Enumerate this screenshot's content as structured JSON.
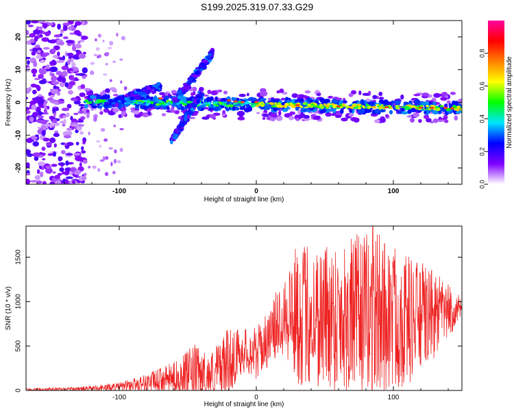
{
  "title": "S199.2025.319.07.33.G29",
  "chart_data": [
    {
      "type": "heatmap",
      "name": "spectrogram",
      "title": "S199.2025.319.07.33.G29",
      "xlabel": "Height of straight line (km)",
      "ylabel": "Frequency (Hz)",
      "xlim": [
        -168,
        150
      ],
      "ylim": [
        -25,
        25
      ],
      "xticks": [
        -100,
        0,
        100
      ],
      "yticks": [
        -20,
        -10,
        0,
        10,
        20
      ],
      "colorbar": {
        "label": "Normalized spectral amplitude",
        "range": [
          0,
          1
        ],
        "ticks": [
          0.0,
          0.2,
          0.4,
          0.6,
          0.8
        ],
        "colormap": [
          "#ffffff",
          "#8000ff",
          "#0000ff",
          "#00e5ff",
          "#00ff00",
          "#ffff00",
          "#ff8000",
          "#ff0000",
          "#ff00a0"
        ]
      },
      "features": [
        {
          "name": "noise-band",
          "x_range": [
            -168,
            -125
          ],
          "y_range": [
            -25,
            25
          ],
          "amplitude": 0.15
        },
        {
          "name": "main-trace",
          "x_range": [
            -125,
            150
          ],
          "y_start": 0.3,
          "y_end": -1.8,
          "amplitude_range": [
            0.3,
            0.9
          ]
        },
        {
          "name": "rising-branch-1",
          "x_range": [
            -60,
            -32
          ],
          "y_start": 0,
          "y_end": 15
        },
        {
          "name": "rising-branch-2",
          "x_range": [
            -62,
            -40
          ],
          "y_start": -12,
          "y_end": 3
        },
        {
          "name": "early-branch",
          "x_range": [
            -110,
            -70
          ],
          "y_start": -1,
          "y_end": 5
        }
      ]
    },
    {
      "type": "line",
      "name": "snr",
      "xlabel": "Height of straight line (km)",
      "ylabel": "SNR (10 * v/v)",
      "xlim": [
        -168,
        150
      ],
      "ylim": [
        0,
        1850
      ],
      "xticks": [
        -100,
        0,
        100
      ],
      "yticks": [
        0,
        500,
        1000,
        1500
      ],
      "color": "#ee2222",
      "envelope": [
        {
          "x": -168,
          "base": 10,
          "amp": 15
        },
        {
          "x": -130,
          "base": 15,
          "amp": 25
        },
        {
          "x": -100,
          "base": 40,
          "amp": 50
        },
        {
          "x": -80,
          "base": 90,
          "amp": 100
        },
        {
          "x": -60,
          "base": 140,
          "amp": 180
        },
        {
          "x": -45,
          "base": 190,
          "amp": 330
        },
        {
          "x": -35,
          "base": 150,
          "amp": 260
        },
        {
          "x": -20,
          "base": 330,
          "amp": 380
        },
        {
          "x": -10,
          "base": 450,
          "amp": 250
        },
        {
          "x": 0,
          "base": 420,
          "amp": 300
        },
        {
          "x": 10,
          "base": 600,
          "amp": 300
        },
        {
          "x": 15,
          "base": 750,
          "amp": 400
        },
        {
          "x": 20,
          "base": 900,
          "amp": 500
        },
        {
          "x": 30,
          "base": 850,
          "amp": 800
        },
        {
          "x": 60,
          "base": 850,
          "amp": 880
        },
        {
          "x": 90,
          "base": 850,
          "amp": 950
        },
        {
          "x": 110,
          "base": 800,
          "amp": 750
        },
        {
          "x": 130,
          "base": 850,
          "amp": 500
        },
        {
          "x": 150,
          "base": 920,
          "amp": 120
        }
      ],
      "peak": {
        "x": 85,
        "y": 1850
      }
    }
  ]
}
